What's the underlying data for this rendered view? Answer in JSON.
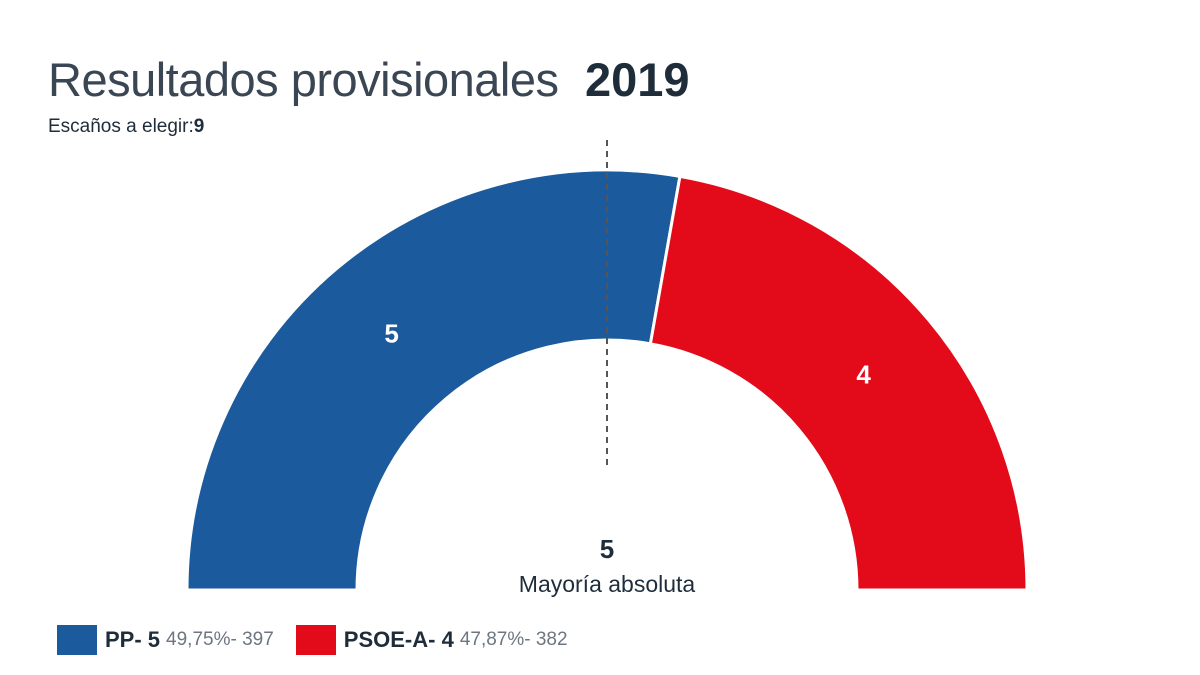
{
  "header": {
    "title": "Resultados provisionales",
    "year": "2019",
    "seats_label": "Escaños a elegir:",
    "seats_total": "9"
  },
  "majority": {
    "value": "5",
    "label": "Mayoría absoluta"
  },
  "chart_data": {
    "type": "hemicycle",
    "total_seats": 9,
    "majority": 5,
    "series": [
      {
        "name": "PP",
        "seats": 5,
        "percent": "49,75%",
        "votes": 397,
        "color": "#1b5a9c"
      },
      {
        "name": "PSOE-A",
        "seats": 4,
        "percent": "47,87%",
        "votes": 382,
        "color": "#e30a1a"
      }
    ]
  },
  "legend": [
    {
      "name": "PP- 5",
      "detail": "49,75%- 397",
      "color": "#1b5a9c"
    },
    {
      "name": "PSOE-A- 4",
      "detail": "47,87%- 382",
      "color": "#e30a1a"
    }
  ]
}
